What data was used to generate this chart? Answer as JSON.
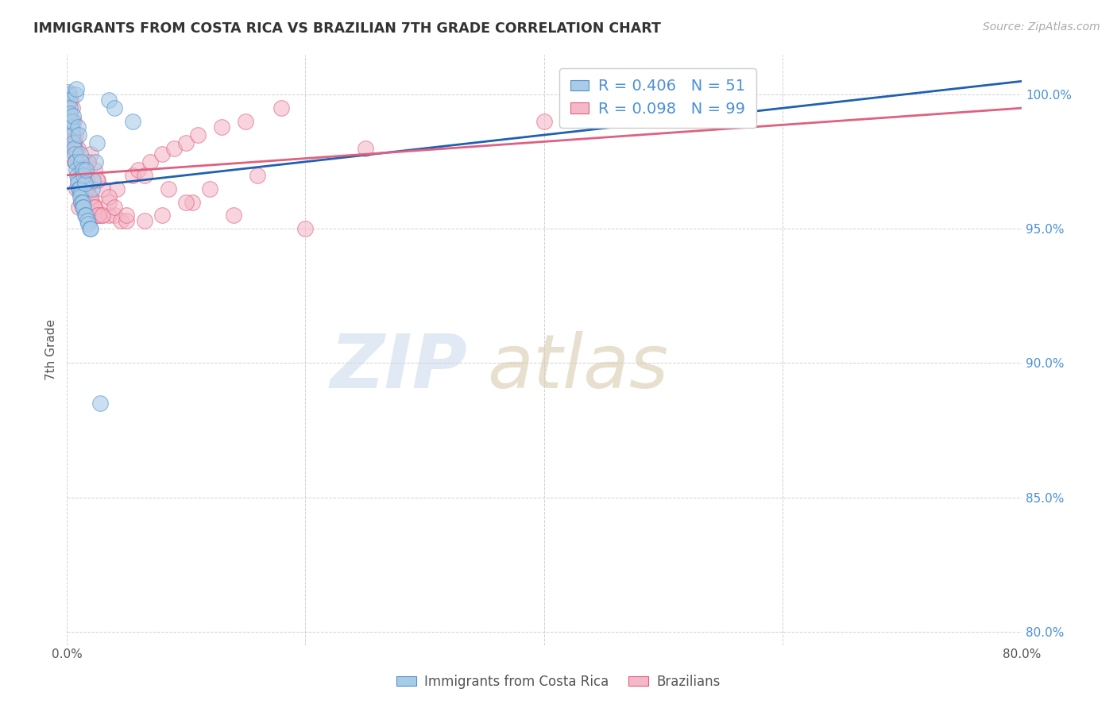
{
  "title": "IMMIGRANTS FROM COSTA RICA VS BRAZILIAN 7TH GRADE CORRELATION CHART",
  "source": "Source: ZipAtlas.com",
  "ylabel": "7th Grade",
  "xlim": [
    0.0,
    80.0
  ],
  "ylim": [
    79.5,
    101.5
  ],
  "yticks": [
    80.0,
    85.0,
    90.0,
    95.0,
    100.0
  ],
  "ytick_labels": [
    "80.0%",
    "85.0%",
    "90.0%",
    "95.0%",
    "100.0%"
  ],
  "xticks": [
    0.0,
    20.0,
    40.0,
    60.0,
    80.0
  ],
  "xtick_labels": [
    "0.0%",
    "",
    "",
    "",
    "80.0%"
  ],
  "blue_R": 0.406,
  "blue_N": 51,
  "pink_R": 0.098,
  "pink_N": 99,
  "blue_color": "#a8cce8",
  "pink_color": "#f4b8c8",
  "blue_edge_color": "#5590c8",
  "pink_edge_color": "#e06080",
  "blue_line_color": "#2060b0",
  "pink_line_color": "#e06080",
  "legend_label_blue": "Immigrants from Costa Rica",
  "legend_label_pink": "Brazilians",
  "blue_scatter_x": [
    0.1,
    0.15,
    0.2,
    0.25,
    0.3,
    0.35,
    0.4,
    0.5,
    0.55,
    0.6,
    0.65,
    0.7,
    0.75,
    0.8,
    0.85,
    0.9,
    0.95,
    1.0,
    1.05,
    1.1,
    1.15,
    1.2,
    1.3,
    1.35,
    1.4,
    1.5,
    1.6,
    1.7,
    1.8,
    1.9,
    2.0,
    2.1,
    2.2,
    2.4,
    2.5,
    0.45,
    0.55,
    0.7,
    0.8,
    0.9,
    1.0,
    1.1,
    1.2,
    1.3,
    1.4,
    1.5,
    1.6,
    3.5,
    4.0,
    5.5,
    2.8
  ],
  "blue_scatter_y": [
    100.0,
    100.1,
    99.8,
    99.5,
    99.3,
    99.0,
    98.8,
    98.5,
    98.2,
    98.0,
    97.8,
    97.5,
    97.5,
    97.2,
    97.0,
    96.8,
    96.7,
    96.5,
    96.5,
    96.3,
    96.2,
    96.0,
    96.0,
    95.8,
    95.8,
    95.5,
    95.5,
    95.3,
    95.2,
    95.0,
    95.0,
    96.5,
    96.8,
    97.5,
    98.2,
    99.0,
    99.2,
    100.0,
    100.2,
    98.8,
    98.5,
    97.8,
    97.5,
    97.2,
    97.0,
    96.7,
    97.2,
    99.8,
    99.5,
    99.0,
    88.5
  ],
  "pink_scatter_x": [
    0.1,
    0.2,
    0.3,
    0.4,
    0.5,
    0.6,
    0.7,
    0.8,
    0.9,
    1.0,
    1.1,
    1.2,
    1.3,
    1.4,
    1.5,
    1.6,
    1.7,
    1.8,
    1.9,
    2.0,
    2.1,
    2.2,
    2.3,
    2.5,
    2.7,
    3.0,
    3.5,
    4.0,
    4.5,
    5.0,
    0.35,
    0.45,
    0.55,
    0.65,
    0.75,
    0.85,
    0.95,
    1.05,
    1.15,
    1.25,
    1.35,
    1.45,
    1.6,
    1.75,
    2.0,
    2.3,
    2.6,
    3.0,
    3.5,
    4.2,
    5.5,
    6.0,
    7.0,
    8.0,
    9.0,
    10.0,
    11.0,
    13.0,
    15.0,
    18.0,
    6.5,
    8.5,
    10.5,
    14.0,
    20.0,
    0.25,
    0.35,
    0.45,
    0.6,
    0.75,
    0.9,
    1.05,
    1.2,
    1.4,
    1.6,
    1.8,
    2.0,
    2.3,
    2.6,
    3.0,
    3.5,
    4.0,
    5.0,
    6.5,
    8.0,
    10.0,
    12.0,
    16.0,
    25.0,
    40.0,
    57.0,
    0.5,
    0.65,
    0.8,
    1.0,
    1.2,
    1.5,
    1.8,
    2.5
  ],
  "pink_scatter_y": [
    99.5,
    99.2,
    99.0,
    98.8,
    98.5,
    98.2,
    98.0,
    97.8,
    97.6,
    97.5,
    97.3,
    97.2,
    97.0,
    96.8,
    96.8,
    96.5,
    96.5,
    96.3,
    96.2,
    96.0,
    96.0,
    95.8,
    95.8,
    95.5,
    95.5,
    95.5,
    95.5,
    95.5,
    95.3,
    95.3,
    99.0,
    98.7,
    98.5,
    98.2,
    98.0,
    97.8,
    97.5,
    97.3,
    97.0,
    96.8,
    96.5,
    96.3,
    96.5,
    96.8,
    96.2,
    95.8,
    95.5,
    95.5,
    96.0,
    96.5,
    97.0,
    97.2,
    97.5,
    97.8,
    98.0,
    98.2,
    98.5,
    98.8,
    99.0,
    99.5,
    97.0,
    96.5,
    96.0,
    95.5,
    95.0,
    100.0,
    99.8,
    99.5,
    99.0,
    98.5,
    98.0,
    97.5,
    97.0,
    97.0,
    97.2,
    97.5,
    97.8,
    97.2,
    96.8,
    96.5,
    96.2,
    95.8,
    95.5,
    95.3,
    95.5,
    96.0,
    96.5,
    97.0,
    98.0,
    99.0,
    100.0,
    98.5,
    97.5,
    96.5,
    95.8,
    96.0,
    97.0,
    97.5,
    96.8
  ],
  "blue_trend_x": [
    0.0,
    80.0
  ],
  "blue_trend_y": [
    96.5,
    100.5
  ],
  "pink_trend_x": [
    0.0,
    80.0
  ],
  "pink_trend_y": [
    97.0,
    99.5
  ]
}
